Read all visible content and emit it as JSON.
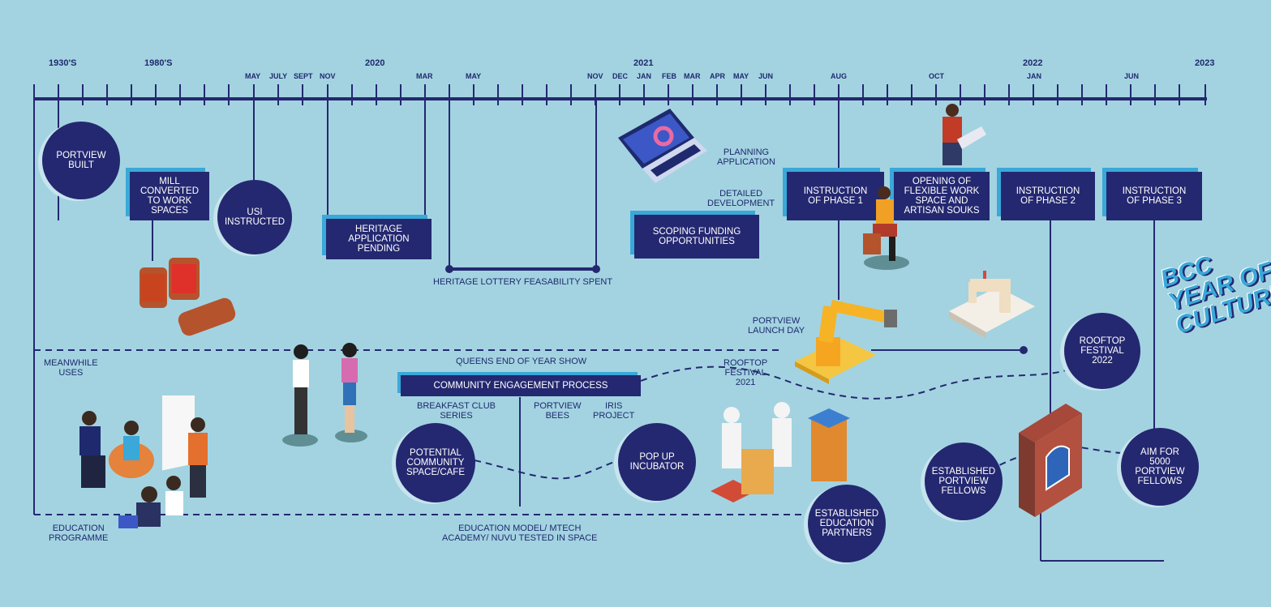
{
  "timeline": {
    "years": [
      "1930'S",
      "1980'S",
      "2020",
      "2021",
      "2022",
      "2023"
    ],
    "months": [
      "MAY",
      "JULY",
      "SEPT",
      "NOV",
      "MAR",
      "MAY",
      "NOV",
      "DEC",
      "JAN",
      "FEB",
      "MAR",
      "APR",
      "MAY",
      "JUN",
      "AUG",
      "OCT",
      "JAN",
      "JUN"
    ]
  },
  "milestones": {
    "portview_built": "PORTVIEW\nBUILT",
    "mill_converted": "MILL\nCONVERTED\nTO WORK\nSPACES",
    "usi_instructed": "USI\nINSTRUCTED",
    "heritage_application": "HERITAGE\nAPPLICATION\nPENDING",
    "heritage_lottery": "HERITAGE LOTTERY FEASABILITY SPENT",
    "planning_application": "PLANNING\nAPPLICATION",
    "detailed_development": "DETAILED\nDEVELOPMENT",
    "scoping_funding": "SCOPING FUNDING\nOPPORTUNITIES",
    "instruction_phase_1": "INSTRUCTION\nOF PHASE 1",
    "opening_flexible": "OPENING OF\nFLEXIBLE WORK\nSPACE AND\nARTISAN SOUKS",
    "instruction_phase_2": "INSTRUCTION\nOF PHASE 2",
    "instruction_phase_3": "INSTRUCTION\nOF PHASE 3",
    "portview_launch_day": "PORTVIEW\nLAUNCH DAY",
    "bcc_year_of_culture": "BCC\nYEAR OF\nCULTURE"
  },
  "meanwhile": {
    "label": "MEANWHILE\nUSES",
    "queens_show": "QUEENS END OF YEAR SHOW",
    "community_engagement": "COMMUNITY ENGAGEMENT PROCESS",
    "breakfast_club": "BREAKFAST CLUB\nSERIES",
    "portview_bees": "PORTVIEW\nBEES",
    "iris_project": "IRIS\nPROJECT",
    "rooftop_festival_2021": "ROOFTOP\nFESTIVAL\n2021",
    "rooftop_festival_2022": "ROOFTOP\nFESTIVAL\n2022",
    "potential_community": "POTENTIAL\nCOMMUNITY\nSPACE/CAFE",
    "pop_up_incubator": "POP UP\nINCUBATOR",
    "established_fellows": "ESTABLISHED\nPORTVIEW\nFELLOWS",
    "aim_fellows": "AIM FOR\n5000\nPORTVIEW\nFELLOWS"
  },
  "education": {
    "label": "EDUCATION\nPROGRAMME",
    "model": "EDUCATION MODEL/ MTECH\nACADEMY/ NUVU TESTED IN SPACE",
    "partners": "ESTABLISHED\nEDUCATION\nPARTNERS"
  },
  "colors": {
    "background": "#a3d3e1",
    "navy": "#242870",
    "accent": "#3aa8d8"
  },
  "icons": [
    "thread-spools-icon",
    "laptop-chart-icon",
    "vr-people-icon",
    "meeting-people-icon",
    "potter-icon",
    "robot-arm-icon",
    "sewing-machine-icon",
    "beekeepers-icon",
    "brick-window-icon",
    "laptop-man-icon"
  ]
}
